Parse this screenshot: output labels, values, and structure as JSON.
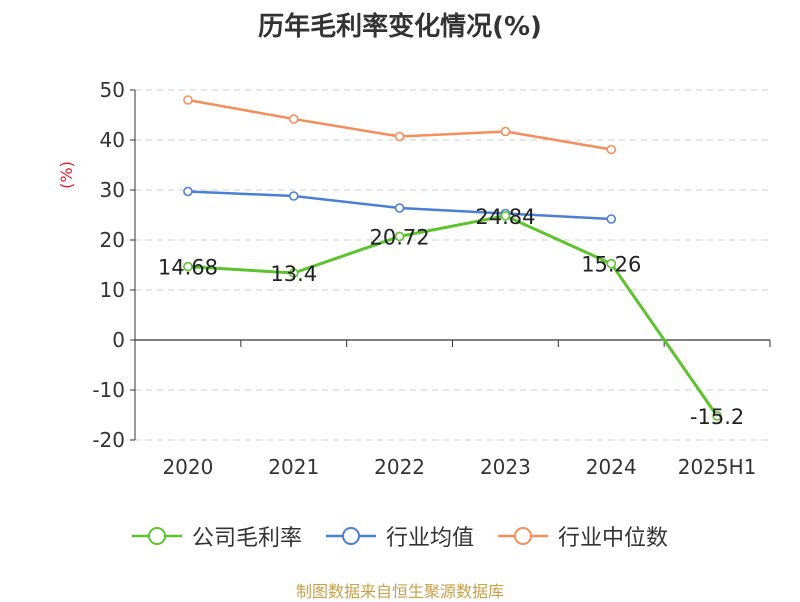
{
  "title": "历年毛利率变化情况(%)",
  "source": "制图数据来自恒生聚源数据库",
  "chart_data": {
    "type": "line",
    "title": "历年毛利率变化情况(%)",
    "ylabel": "(%)",
    "xlabel": "",
    "categories": [
      "2020",
      "2021",
      "2022",
      "2023",
      "2024",
      "2025H1"
    ],
    "ylim": [
      -20,
      50
    ],
    "yticks": [
      50,
      40,
      30,
      20,
      10,
      0,
      -10,
      -20
    ],
    "grid": true,
    "legend_position": "bottom",
    "series": [
      {
        "name": "公司毛利率",
        "color": "#5cc22e",
        "values": [
          14.68,
          13.4,
          20.72,
          24.84,
          15.26,
          -15.2
        ],
        "labels": [
          "14.68",
          "13.4",
          "20.72",
          "24.84",
          "15.26",
          "-15.2"
        ]
      },
      {
        "name": "行业均值",
        "color": "#4a7fd4",
        "values": [
          29.7,
          28.8,
          26.4,
          25.3,
          24.2,
          null
        ],
        "labels": []
      },
      {
        "name": "行业中位数",
        "color": "#f58e5c",
        "values": [
          48.0,
          44.2,
          40.7,
          41.7,
          38.1,
          null
        ],
        "labels": []
      }
    ]
  }
}
